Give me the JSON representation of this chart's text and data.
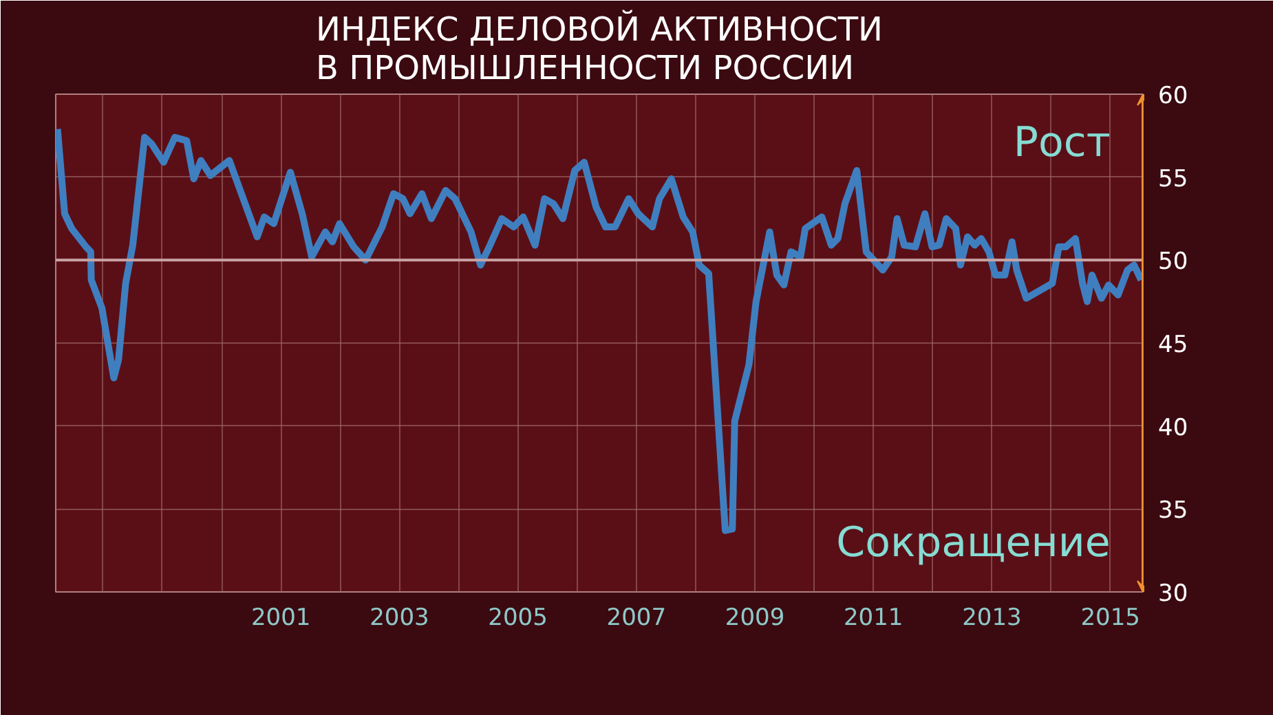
{
  "chart_data": {
    "type": "line",
    "title": "ИНДЕКС ДЕЛОВОЙ АКТИВНОСТИ В ПРОМЫШЛЕННОСТИ РОССИИ",
    "annotations": [
      "Рост",
      "Сокращение"
    ],
    "series": [
      {
        "color": "#3f7fc0",
        "x": [
          1997.23,
          1997.35,
          1997.47,
          1997.71,
          1997.79,
          1997.8,
          1997.98,
          1998.18,
          1998.26,
          1998.38,
          1998.5,
          1998.7,
          1998.82,
          1999.02,
          1999.21,
          1999.41,
          1999.53,
          1999.65,
          1999.81,
          2000.13,
          2000.6,
          2000.72,
          2000.88,
          2001.16,
          2001.36,
          2001.52,
          2001.75,
          2001.87,
          2001.99,
          2002.23,
          2002.43,
          2002.71,
          2002.9,
          2003.06,
          2003.18,
          2003.38,
          2003.54,
          2003.78,
          2003.94,
          2004.21,
          2004.37,
          2004.53,
          2004.73,
          2004.93,
          2005.09,
          2005.29,
          2005.45,
          2005.6,
          2005.76,
          2005.96,
          2006.12,
          2006.32,
          2006.48,
          2006.64,
          2006.87,
          2007.03,
          2007.27,
          2007.39,
          2007.59,
          2007.79,
          2007.95,
          2008.06,
          2008.22,
          2008.5,
          2008.62,
          2008.66,
          2008.9,
          2009.02,
          2009.25,
          2009.37,
          2009.49,
          2009.61,
          2009.77,
          2009.85,
          2010.13,
          2010.29,
          2010.4,
          2010.52,
          2010.72,
          2010.88,
          2011.16,
          2011.31,
          2011.4,
          2011.52,
          2011.71,
          2011.87,
          2011.99,
          2012.11,
          2012.23,
          2012.39,
          2012.47,
          2012.59,
          2012.71,
          2012.82,
          2012.95,
          2013.06,
          2013.22,
          2013.34,
          2013.42,
          2013.58,
          2014.02,
          2014.13,
          2014.25,
          2014.41,
          2014.53,
          2014.61,
          2014.69,
          2014.85,
          2014.97,
          2015.13,
          2015.29,
          2015.4,
          2015.52
        ],
        "values": [
          57.9,
          52.8,
          51.9,
          50.8,
          50.5,
          48.8,
          47.1,
          42.9,
          44.0,
          48.6,
          50.9,
          57.4,
          57.0,
          55.9,
          57.4,
          57.2,
          54.9,
          56.0,
          55.1,
          56.0,
          51.4,
          52.6,
          52.2,
          55.3,
          52.8,
          50.2,
          51.7,
          51.1,
          52.2,
          50.8,
          50.0,
          52.0,
          54.0,
          53.7,
          52.8,
          54.0,
          52.5,
          54.2,
          53.7,
          51.7,
          49.7,
          50.9,
          52.5,
          52.0,
          52.6,
          50.9,
          53.7,
          53.4,
          52.5,
          55.4,
          55.9,
          53.2,
          52.0,
          52.0,
          53.7,
          52.8,
          52.0,
          53.7,
          54.9,
          52.6,
          51.7,
          49.7,
          49.2,
          33.7,
          33.8,
          40.3,
          43.7,
          47.5,
          51.7,
          49.1,
          48.5,
          50.5,
          50.2,
          51.9,
          52.6,
          50.9,
          51.3,
          53.4,
          55.4,
          50.5,
          49.4,
          50.2,
          52.5,
          50.9,
          50.8,
          52.8,
          50.8,
          50.9,
          52.5,
          51.9,
          49.7,
          51.4,
          50.9,
          51.3,
          50.5,
          49.1,
          49.1,
          51.1,
          49.4,
          47.7,
          48.6,
          50.8,
          50.8,
          51.3,
          48.6,
          47.5,
          49.1,
          47.7,
          48.5,
          47.9,
          49.4,
          49.7,
          48.8
        ]
      }
    ],
    "xlim": [
      1997.2,
      2015.55
    ],
    "xticks": [
      {
        "value": 1998,
        "label": null
      },
      {
        "value": 1999,
        "label": null
      },
      {
        "value": 2000,
        "label": null
      },
      2001,
      {
        "value": 2002,
        "label": null
      },
      2003,
      {
        "value": 2004,
        "label": null
      },
      2005,
      {
        "value": 2006,
        "label": null
      },
      2007,
      {
        "value": 2008,
        "label": null
      },
      2009,
      {
        "value": 2010,
        "label": null
      },
      2011,
      {
        "value": 2012,
        "label": null
      },
      2013,
      {
        "value": 2014,
        "label": null
      },
      2015
    ],
    "ylim": [
      30,
      60
    ],
    "yticks": [
      30,
      35,
      40,
      45,
      50,
      55,
      60
    ],
    "ref_lines": [
      {
        "axis": "y",
        "value": 50,
        "color": "#c9a3a3"
      }
    ],
    "grid": true,
    "marker": "none",
    "line_style": "solid"
  }
}
